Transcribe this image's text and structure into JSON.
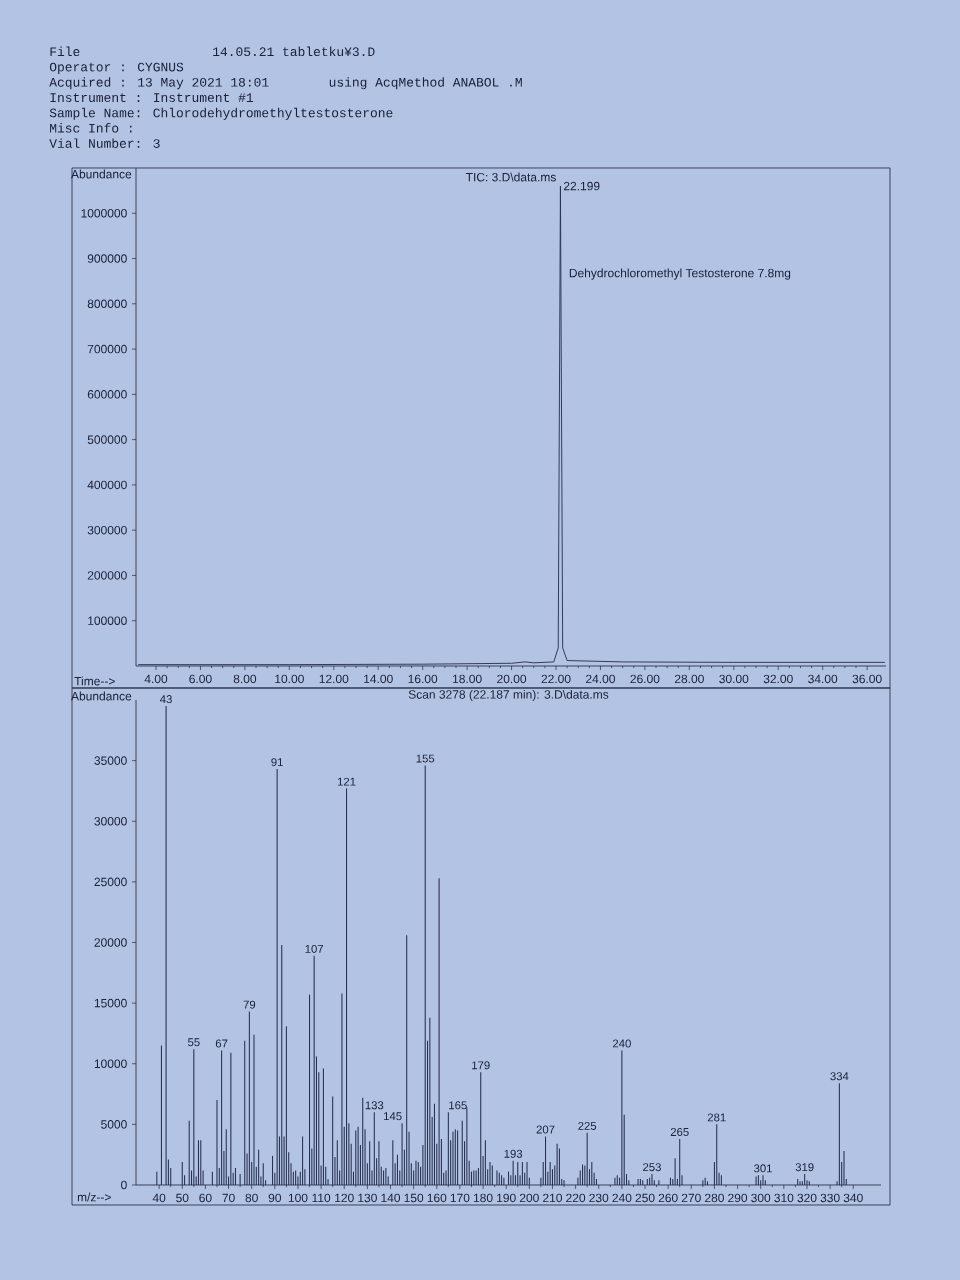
{
  "chart_data": [
    {
      "type": "other",
      "annotations": [
        "File",
        "14.05.21 tabletku¥3.D",
        "Operator : CYGNUS",
        "Acquired : 13 May 2021 18:01",
        "using AcqMethod ANABOL .M",
        "Instrument : Instrument #1",
        "Sample Name: Chlorodehydromethyltestosterone",
        "Misc Info :",
        "Vial Number: 3"
      ]
    },
    {
      "type": "line",
      "title": "TIC: 3.D\\data.ms",
      "xlabel": "Time-->",
      "ylabel": "Abundance",
      "color": "#283150",
      "x": [
        3.2,
        10,
        16,
        20,
        20.6,
        21,
        21.9,
        22.1,
        22.199,
        22.3,
        22.5,
        25,
        30,
        36.8
      ],
      "values": [
        3000,
        3000,
        4000,
        6000,
        9000,
        7000,
        9000,
        40000,
        1060000,
        40000,
        12000,
        9000,
        8000,
        8000
      ],
      "xlim": [
        3.1,
        36.85
      ],
      "ylim": [
        0,
        1100000
      ],
      "xticks": [
        {
          "value": 4,
          "label": "4.00"
        },
        {
          "value": 6,
          "label": "6.00"
        },
        {
          "value": 8,
          "label": "8.00"
        },
        {
          "value": 10,
          "label": "10.00"
        },
        {
          "value": 12,
          "label": "12.00"
        },
        {
          "value": 14,
          "label": "14.00"
        },
        {
          "value": 16,
          "label": "16.00"
        },
        {
          "value": 18,
          "label": "18.00"
        },
        {
          "value": 20,
          "label": "20.00"
        },
        {
          "value": 22,
          "label": "22.00"
        },
        {
          "value": 24,
          "label": "24.00"
        },
        {
          "value": 26,
          "label": "26.00"
        },
        {
          "value": 28,
          "label": "28.00"
        },
        {
          "value": 30,
          "label": "30.00"
        },
        {
          "value": 32,
          "label": "32.00"
        },
        {
          "value": 34,
          "label": "34.00"
        },
        {
          "value": 36,
          "label": "36.00"
        }
      ],
      "yticks": [
        100000,
        200000,
        300000,
        400000,
        500000,
        600000,
        700000,
        800000,
        900000,
        1000000
      ],
      "annotations": [
        {
          "text": "22.199",
          "x": 22.199,
          "y": 1060000
        },
        "Dehydrochloromethyl Testosterone 7.8mg"
      ]
    },
    {
      "type": "bar",
      "title": "Scan 3278 (22.187 min): 3.D\\data.ms",
      "xlabel": "m/z-->",
      "ylabel": "Abundance",
      "color": "#283150",
      "x": [
        39,
        41,
        43,
        44,
        45,
        50,
        51,
        53,
        54,
        55,
        56,
        57,
        58,
        59,
        63,
        65,
        66,
        67,
        68,
        69,
        70,
        71,
        72,
        73,
        75,
        77,
        78,
        79,
        80,
        81,
        82,
        83,
        84,
        85,
        86,
        89,
        90,
        91,
        92,
        93,
        94,
        95,
        96,
        97,
        98,
        99,
        100,
        101,
        102,
        103,
        105,
        106,
        107,
        108,
        109,
        110,
        111,
        112,
        113,
        115,
        116,
        117,
        118,
        119,
        120,
        121,
        122,
        123,
        124,
        125,
        126,
        127,
        128,
        129,
        130,
        131,
        132,
        133,
        134,
        135,
        136,
        137,
        138,
        139,
        141,
        142,
        143,
        144,
        145,
        146,
        147,
        148,
        149,
        150,
        151,
        152,
        153,
        154,
        155,
        156,
        157,
        158,
        159,
        160,
        161,
        162,
        163,
        164,
        165,
        166,
        167,
        168,
        169,
        171,
        172,
        173,
        174,
        175,
        176,
        177,
        178,
        179,
        180,
        181,
        182,
        183,
        184,
        186,
        187,
        188,
        189,
        191,
        192,
        193,
        194,
        195,
        196,
        197,
        198,
        199,
        200,
        205,
        206,
        207,
        208,
        209,
        210,
        211,
        212,
        213,
        214,
        215,
        221,
        222,
        223,
        224,
        225,
        226,
        227,
        228,
        229,
        237,
        238,
        239,
        240,
        241,
        242,
        243,
        247,
        248,
        249,
        251,
        252,
        253,
        254,
        256,
        261,
        262,
        263,
        264,
        265,
        266,
        275,
        276,
        277,
        280,
        281,
        282,
        283,
        298,
        299,
        300,
        301,
        302,
        316,
        317,
        318,
        319,
        320,
        321,
        333,
        334,
        335,
        336,
        337
      ],
      "values": [
        1100,
        11500,
        39500,
        2100,
        1400,
        1900,
        800,
        5300,
        1200,
        11200,
        700,
        3700,
        3700,
        1200,
        1100,
        7000,
        1400,
        11100,
        2800,
        4600,
        700,
        10900,
        1000,
        1400,
        900,
        11900,
        2600,
        14300,
        1900,
        12400,
        1500,
        2900,
        700,
        1800,
        400,
        2400,
        1000,
        34300,
        4000,
        19800,
        4000,
        13100,
        2700,
        1800,
        1100,
        1200,
        700,
        1100,
        4000,
        1300,
        15700,
        3000,
        18900,
        10600,
        9300,
        1600,
        9600,
        1500,
        500,
        7300,
        2300,
        3700,
        1200,
        15800,
        4800,
        32700,
        5100,
        3400,
        1100,
        4500,
        4800,
        3300,
        7200,
        4600,
        1800,
        3600,
        1200,
        6000,
        2200,
        3600,
        1500,
        1200,
        1400,
        700,
        3700,
        1800,
        2500,
        1200,
        5100,
        2900,
        20600,
        4400,
        1800,
        1200,
        2000,
        1900,
        1500,
        3300,
        34600,
        11900,
        13800,
        5600,
        6700,
        3400,
        25300,
        3800,
        1000,
        1200,
        6000,
        3700,
        4400,
        4600,
        4500,
        5300,
        3600,
        6400,
        2000,
        1100,
        1200,
        1200,
        1400,
        9300,
        2400,
        3700,
        1300,
        1900,
        1600,
        1200,
        1000,
        800,
        600,
        1100,
        800,
        2000,
        800,
        1900,
        800,
        1900,
        1000,
        1900,
        600,
        600,
        1900,
        4000,
        1100,
        1900,
        1300,
        1600,
        3400,
        3000,
        500,
        400,
        600,
        1200,
        1700,
        1600,
        4300,
        1300,
        1900,
        1000,
        500,
        600,
        800,
        600,
        11100,
        5800,
        900,
        400,
        500,
        500,
        400,
        500,
        600,
        900,
        400,
        400,
        600,
        500,
        2200,
        500,
        3800,
        800,
        400,
        600,
        300,
        1900,
        5000,
        1000,
        800,
        700,
        800,
        400,
        800,
        400,
        500,
        300,
        300,
        900,
        400,
        300,
        300,
        8400,
        1900,
        2800,
        500
      ],
      "annotations": [
        {
          "text": "43",
          "x": 43,
          "y": 39500
        },
        {
          "text": "55",
          "x": 55,
          "y": 11200
        },
        {
          "text": "67",
          "x": 67,
          "y": 11100
        },
        {
          "text": "79",
          "x": 79,
          "y": 14300
        },
        {
          "text": "91",
          "x": 91,
          "y": 34300
        },
        {
          "text": "107",
          "x": 107,
          "y": 18900
        },
        {
          "text": "121",
          "x": 121,
          "y": 32700
        },
        {
          "text": "133",
          "x": 133,
          "y": 6000
        },
        {
          "text": "145",
          "x": 145,
          "y": 5100
        },
        {
          "text": "155",
          "x": 155,
          "y": 34600
        },
        {
          "text": "165",
          "x": 165,
          "y": 6000
        },
        {
          "text": "179",
          "x": 179,
          "y": 9300
        },
        {
          "text": "193",
          "x": 193,
          "y": 2000
        },
        {
          "text": "207",
          "x": 207,
          "y": 4000
        },
        {
          "text": "225",
          "x": 225,
          "y": 4300
        },
        {
          "text": "240",
          "x": 240,
          "y": 11100
        },
        {
          "text": "253",
          "x": 253,
          "y": 900
        },
        {
          "text": "265",
          "x": 265,
          "y": 3800
        },
        {
          "text": "281",
          "x": 281,
          "y": 5000
        },
        {
          "text": "301",
          "x": 301,
          "y": 800
        },
        {
          "text": "319",
          "x": 319,
          "y": 900
        },
        {
          "text": "334",
          "x": 334,
          "y": 8400
        }
      ],
      "xlim": [
        30,
        352
      ],
      "ylim": [
        0,
        40000
      ],
      "xticks": [
        40,
        50,
        60,
        70,
        80,
        90,
        100,
        110,
        120,
        130,
        140,
        150,
        160,
        170,
        180,
        190,
        200,
        210,
        220,
        230,
        240,
        250,
        260,
        270,
        280,
        290,
        300,
        310,
        320,
        330,
        340
      ],
      "yticks": [
        0,
        5000,
        10000,
        15000,
        20000,
        25000,
        30000,
        35000
      ]
    }
  ]
}
